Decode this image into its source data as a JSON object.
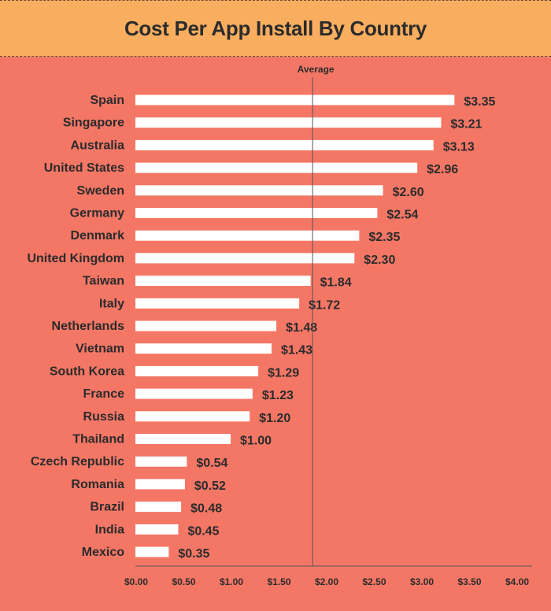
{
  "chart_data": {
    "type": "bar",
    "orientation": "horizontal",
    "title": "Cost Per App Install By Country",
    "categories": [
      "Spain",
      "Singapore",
      "Australia",
      "United States",
      "Sweden",
      "Germany",
      "Denmark",
      "United Kingdom",
      "Taiwan",
      "Italy",
      "Netherlands",
      "Vietnam",
      "South Korea",
      "France",
      "Russia",
      "Thailand",
      "Czech Republic",
      "Romania",
      "Brazil",
      "India",
      "Mexico"
    ],
    "values": [
      3.35,
      3.21,
      3.13,
      2.96,
      2.6,
      2.54,
      2.35,
      2.3,
      1.84,
      1.72,
      1.48,
      1.43,
      1.29,
      1.23,
      1.2,
      1.0,
      0.54,
      0.52,
      0.48,
      0.45,
      0.35
    ],
    "value_labels": [
      "$3.35",
      "$3.21",
      "$3.13",
      "$2.96",
      "$2.60",
      "$2.54",
      "$2.35",
      "$2.30",
      "$1.84",
      "$1.72",
      "$1.48",
      "$1.43",
      "$1.29",
      "$1.23",
      "$1.20",
      "$1.00",
      "$0.54",
      "$0.52",
      "$0.48",
      "$0.45",
      "$0.35"
    ],
    "xlim": [
      0,
      4
    ],
    "x_ticks": [
      0,
      0.5,
      1,
      1.5,
      2,
      2.5,
      3,
      3.5,
      4
    ],
    "x_tick_labels": [
      "$0.00",
      "$0.50",
      "$1.00",
      "$1.50",
      "$2.00",
      "$2.50",
      "$3.00",
      "$3.50",
      "$4.00"
    ],
    "reference_line": {
      "label": "Average",
      "value": 1.72
    },
    "grid": false,
    "legend": "none"
  },
  "colors": {
    "background": "#f47766",
    "title_banner": "#f9ae5f",
    "bar": "#ffffff",
    "text": "#2b2b2b",
    "reference_line": "#555555"
  }
}
